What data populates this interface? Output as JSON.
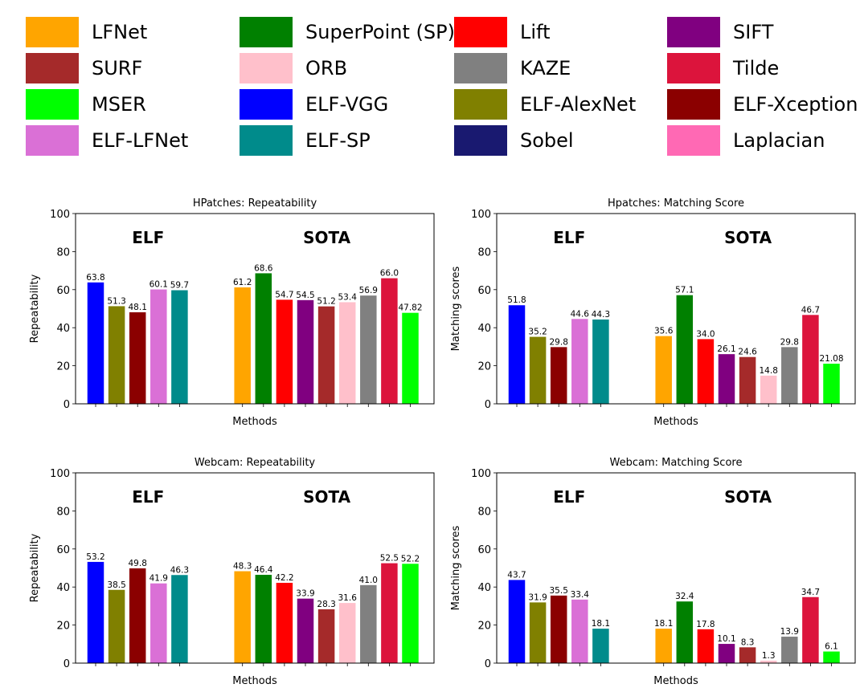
{
  "legend": [
    {
      "label": "LFNet",
      "color": "#FFA500"
    },
    {
      "label": "SuperPoint (SP)",
      "color": "#008000"
    },
    {
      "label": "Lift",
      "color": "#FF0000"
    },
    {
      "label": "SIFT",
      "color": "#800080"
    },
    {
      "label": "SURF",
      "color": "#A52A2A"
    },
    {
      "label": "ORB",
      "color": "#FFC0CB"
    },
    {
      "label": "KAZE",
      "color": "#808080"
    },
    {
      "label": "Tilde",
      "color": "#DC143C"
    },
    {
      "label": "MSER",
      "color": "#00FF00"
    },
    {
      "label": "ELF-VGG",
      "color": "#0000FF"
    },
    {
      "label": "ELF-AlexNet",
      "color": "#808000"
    },
    {
      "label": "ELF-Xception",
      "color": "#8B0000"
    },
    {
      "label": "ELF-LFNet",
      "color": "#DA70D6"
    },
    {
      "label": "ELF-SP",
      "color": "#008B8B"
    },
    {
      "label": "Sobel",
      "color": "#191970"
    },
    {
      "label": "Laplacian",
      "color": "#FF69B4"
    }
  ],
  "chart_data": [
    {
      "type": "bar",
      "title": "HPatches: Repeatability",
      "xlabel": "Methods",
      "ylabel": "Repeatability",
      "ylim": [
        0,
        100
      ],
      "yticks": [
        0,
        20,
        40,
        60,
        80,
        100
      ],
      "group_labels": [
        "ELF",
        "SOTA"
      ],
      "methods": [
        "ELF-VGG",
        "ELF-AlexNet",
        "ELF-Xception",
        "ELF-LFNet",
        "ELF-SP",
        "LFNet",
        "SuperPoint (SP)",
        "Lift",
        "SIFT",
        "SURF",
        "ORB",
        "KAZE",
        "Tilde",
        "MSER"
      ],
      "values": [
        63.8,
        51.3,
        48.1,
        60.1,
        59.7,
        61.2,
        68.6,
        54.7,
        54.5,
        51.2,
        53.4,
        56.9,
        66.0,
        47.82
      ],
      "value_labels": [
        "63.8",
        "51.3",
        "48.1",
        "60.1",
        "59.7",
        "61.2",
        "68.6",
        "54.7",
        "54.5",
        "51.2",
        "53.4",
        "56.9",
        "66.0",
        "47.82"
      ]
    },
    {
      "type": "bar",
      "title": "Hpatches: Matching Score",
      "xlabel": "Methods",
      "ylabel": "Matching scores",
      "ylim": [
        0,
        100
      ],
      "yticks": [
        0,
        20,
        40,
        60,
        80,
        100
      ],
      "group_labels": [
        "ELF",
        "SOTA"
      ],
      "methods": [
        "ELF-VGG",
        "ELF-AlexNet",
        "ELF-Xception",
        "ELF-LFNet",
        "ELF-SP",
        "LFNet",
        "SuperPoint (SP)",
        "Lift",
        "SIFT",
        "SURF",
        "ORB",
        "KAZE",
        "Tilde",
        "MSER"
      ],
      "values": [
        51.8,
        35.2,
        29.8,
        44.6,
        44.3,
        35.6,
        57.1,
        34.0,
        26.1,
        24.6,
        14.8,
        29.8,
        46.7,
        21.08
      ],
      "value_labels": [
        "51.8",
        "35.2",
        "29.8",
        "44.6",
        "44.3",
        "35.6",
        "57.1",
        "34.0",
        "26.1",
        "24.6",
        "14.8",
        "29.8",
        "46.7",
        "21.08"
      ]
    },
    {
      "type": "bar",
      "title": "Webcam: Repeatability",
      "xlabel": "Methods",
      "ylabel": "Repeatability",
      "ylim": [
        0,
        100
      ],
      "yticks": [
        0,
        20,
        40,
        60,
        80,
        100
      ],
      "group_labels": [
        "ELF",
        "SOTA"
      ],
      "methods": [
        "ELF-VGG",
        "ELF-AlexNet",
        "ELF-Xception",
        "ELF-LFNet",
        "ELF-SP",
        "LFNet",
        "SuperPoint (SP)",
        "Lift",
        "SIFT",
        "SURF",
        "ORB",
        "KAZE",
        "Tilde",
        "MSER"
      ],
      "values": [
        53.2,
        38.5,
        49.8,
        41.9,
        46.3,
        48.3,
        46.4,
        42.2,
        33.9,
        28.3,
        31.6,
        41.0,
        52.5,
        52.2
      ],
      "value_labels": [
        "53.2",
        "38.5",
        "49.8",
        "41.9",
        "46.3",
        "48.3",
        "46.4",
        "42.2",
        "33.9",
        "28.3",
        "31.6",
        "41.0",
        "52.5",
        "52.2"
      ]
    },
    {
      "type": "bar",
      "title": "Webcam: Matching Score",
      "xlabel": "Methods",
      "ylabel": "Matching scores",
      "ylim": [
        0,
        100
      ],
      "yticks": [
        0,
        20,
        40,
        60,
        80,
        100
      ],
      "group_labels": [
        "ELF",
        "SOTA"
      ],
      "methods": [
        "ELF-VGG",
        "ELF-AlexNet",
        "ELF-Xception",
        "ELF-LFNet",
        "ELF-SP",
        "LFNet",
        "SuperPoint (SP)",
        "Lift",
        "SIFT",
        "SURF",
        "ORB",
        "KAZE",
        "Tilde",
        "MSER"
      ],
      "values": [
        43.7,
        31.9,
        35.5,
        33.4,
        18.1,
        18.1,
        32.4,
        17.8,
        10.1,
        8.3,
        1.3,
        13.9,
        34.7,
        6.1
      ],
      "value_labels": [
        "43.7",
        "31.9",
        "35.5",
        "33.4",
        "18.1",
        "18.1",
        "32.4",
        "17.8",
        "10.1",
        "8.3",
        "1.3",
        "13.9",
        "34.7",
        "6.1"
      ]
    }
  ]
}
